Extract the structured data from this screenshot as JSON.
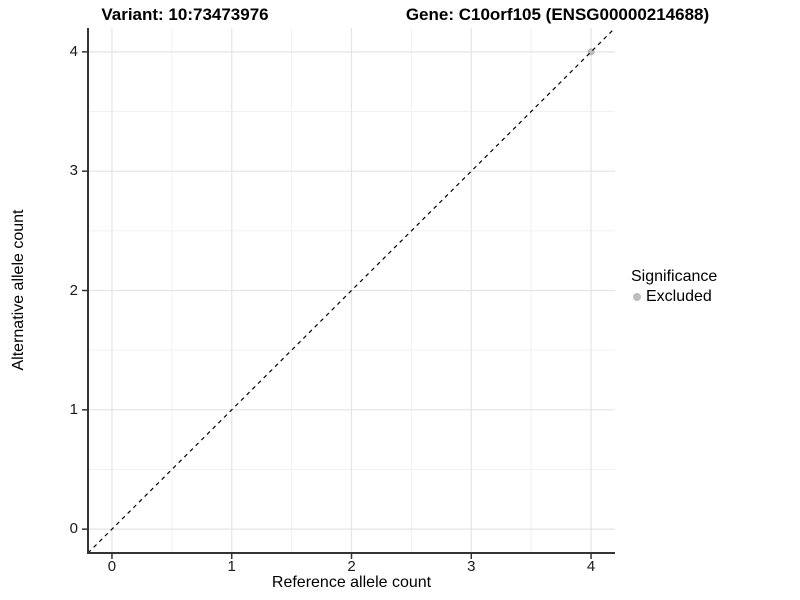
{
  "header": {
    "variant_title": "Variant: 10:73473976",
    "gene_title": "Gene: C10orf105 (ENSG00000214688)"
  },
  "chart_data": {
    "type": "scatter",
    "xlabel": "Reference allele count",
    "ylabel": "Alternative allele count",
    "x_ticks": [
      0,
      1,
      2,
      3,
      4
    ],
    "y_ticks": [
      0,
      1,
      2,
      3,
      4
    ],
    "xlim": [
      -0.2,
      4.2
    ],
    "ylim": [
      -0.2,
      4.2
    ],
    "grid": {
      "major": true,
      "minor": true
    },
    "identity_line": {
      "style": "dashed",
      "slope": 1,
      "intercept": 0,
      "color": "#000000"
    },
    "series": [
      {
        "name": "Excluded",
        "color": "#bdbdbd",
        "points": [
          [
            4,
            4
          ]
        ]
      }
    ],
    "legend": {
      "title": "Significance",
      "position": "right",
      "items": [
        {
          "label": "Excluded",
          "color": "#bdbdbd"
        }
      ]
    }
  },
  "colors": {
    "axis_line": "#333333",
    "tick_mark": "#333333",
    "grid_major": "#e4e4e4",
    "grid_minor": "#f1f1f1",
    "background": "#ffffff"
  }
}
